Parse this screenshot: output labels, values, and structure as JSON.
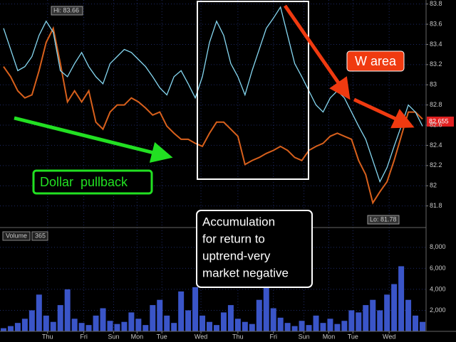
{
  "chart_data": {
    "type": "line",
    "xlim": [
      0,
      600
    ],
    "xticks": [
      {
        "value": 67,
        "label": "Thu"
      },
      {
        "value": 118,
        "label": "Fri"
      },
      {
        "value": 160,
        "label": "Sun"
      },
      {
        "value": 193,
        "label": "Mon"
      },
      {
        "value": 228,
        "label": "Tue"
      },
      {
        "value": 283,
        "label": "Wed"
      },
      {
        "value": 335,
        "label": "Thu"
      },
      {
        "value": 385,
        "label": "Fri"
      },
      {
        "value": 428,
        "label": "Sun"
      },
      {
        "value": 463,
        "label": "Mon"
      },
      {
        "value": 497,
        "label": "Tue"
      },
      {
        "value": 548,
        "label": "Wed"
      }
    ],
    "x": [
      5,
      15,
      25,
      35,
      45,
      55,
      65,
      75,
      85,
      95,
      105,
      115,
      125,
      135,
      145,
      155,
      165,
      175,
      185,
      195,
      205,
      215,
      225,
      235,
      245,
      255,
      265,
      275,
      285,
      295,
      305,
      315,
      325,
      335,
      345,
      355,
      365,
      375,
      385,
      395,
      405,
      415,
      425,
      435,
      445,
      455,
      465,
      475,
      485,
      495,
      505,
      515,
      525,
      535,
      545,
      555,
      565,
      575,
      585,
      595
    ],
    "ylim": [
      81.6,
      83.84
    ],
    "yticks": [
      81.8,
      82,
      82.2,
      82.4,
      82.6,
      82.8,
      83,
      83.2,
      83.4,
      83.6,
      83.8
    ],
    "grid": true,
    "series": [
      {
        "color": "#d8601c",
        "values": [
          83.18,
          83.08,
          82.94,
          82.87,
          82.9,
          83.14,
          83.42,
          83.56,
          83.21,
          82.83,
          82.94,
          82.83,
          82.94,
          82.63,
          82.56,
          82.73,
          82.8,
          82.8,
          82.87,
          82.83,
          82.77,
          82.7,
          82.73,
          82.59,
          82.52,
          82.46,
          82.46,
          82.42,
          82.39,
          82.52,
          82.63,
          82.63,
          82.56,
          82.49,
          82.21,
          82.25,
          82.28,
          82.32,
          82.35,
          82.39,
          82.35,
          82.28,
          82.25,
          82.35,
          82.39,
          82.42,
          82.49,
          82.52,
          82.49,
          82.46,
          82.25,
          82.11,
          81.83,
          81.94,
          82.04,
          82.25,
          82.49,
          82.73,
          82.73,
          82.66
        ]
      },
      {
        "color": "#86d8f2",
        "values": [
          83.56,
          83.35,
          83.14,
          83.18,
          83.28,
          83.49,
          83.63,
          83.52,
          83.14,
          83.08,
          83.21,
          83.32,
          83.18,
          83.08,
          83.01,
          83.21,
          83.28,
          83.35,
          83.32,
          83.25,
          83.18,
          83.08,
          82.97,
          82.9,
          83.08,
          83.14,
          83.01,
          82.87,
          83.08,
          83.42,
          83.63,
          83.49,
          83.21,
          83.08,
          82.9,
          83.14,
          83.35,
          83.56,
          83.66,
          83.77,
          83.49,
          83.21,
          83.08,
          82.94,
          82.8,
          82.73,
          82.87,
          82.94,
          82.87,
          82.73,
          82.59,
          82.46,
          82.25,
          82.04,
          82.18,
          82.39,
          82.59,
          82.8,
          82.73,
          82.59
        ]
      }
    ],
    "volume": {
      "title": "Volume",
      "count": "365",
      "color": "#3a55c8",
      "ylim": [
        0,
        8600
      ],
      "yticks": [
        {
          "value": 2000,
          "label": "2,000"
        },
        {
          "value": 4000,
          "label": "4,000"
        },
        {
          "value": 6000,
          "label": "6,000"
        },
        {
          "value": 8000,
          "label": "8,000"
        }
      ],
      "values": [
        300,
        500,
        800,
        1200,
        2000,
        3500,
        1500,
        900,
        2500,
        4000,
        1200,
        800,
        600,
        1500,
        2200,
        1000,
        700,
        900,
        1800,
        1200,
        600,
        2500,
        3000,
        1500,
        800,
        3800,
        2000,
        4200,
        1500,
        900,
        600,
        1800,
        2500,
        1200,
        900,
        700,
        3000,
        5500,
        2200,
        1300,
        800,
        500,
        1000,
        600,
        1500,
        800,
        1200,
        700,
        1000,
        2000,
        1800,
        2500,
        3000,
        2000,
        3500,
        4500,
        6200,
        3000,
        1500,
        900
      ]
    },
    "high_label": "Hi: 83.66",
    "low_label": "Lo: 81.78",
    "last_price": "82.655",
    "annotations": {
      "pullback": "Dollar  pullback",
      "w_area": "W area",
      "accumulation": [
        "Accumulation",
        "for return to",
        "uptrend-very",
        "market negative"
      ]
    }
  }
}
